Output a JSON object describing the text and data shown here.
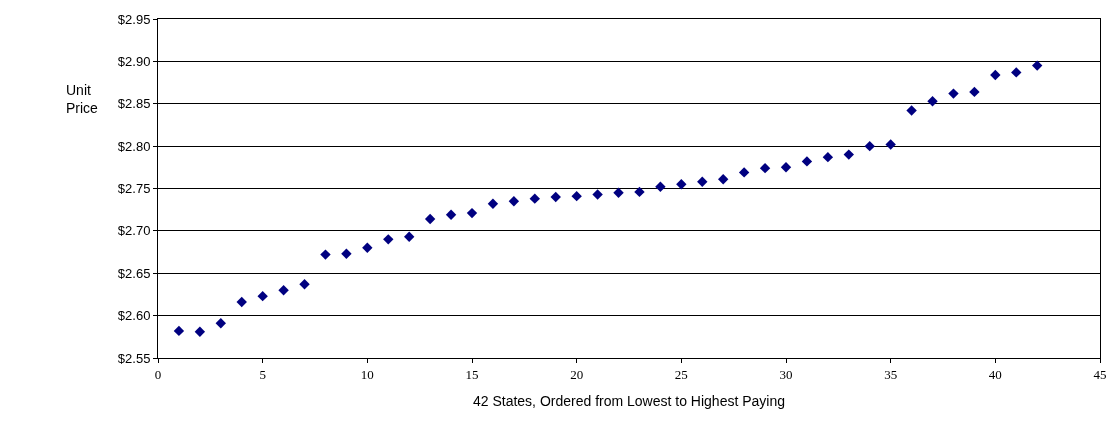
{
  "chart_data": {
    "type": "scatter",
    "xlabel": "42 States, Ordered from Lowest to Highest Paying",
    "ylabel": "Unit\nPrice",
    "x": [
      1,
      2,
      3,
      4,
      5,
      6,
      7,
      8,
      9,
      10,
      11,
      12,
      13,
      14,
      15,
      16,
      17,
      18,
      19,
      20,
      21,
      22,
      23,
      24,
      25,
      26,
      27,
      28,
      29,
      30,
      31,
      32,
      33,
      34,
      35,
      36,
      37,
      38,
      39,
      40,
      41,
      42
    ],
    "series": [
      {
        "color": "#000080",
        "values": [
          2.582,
          2.581,
          2.591,
          2.616,
          2.623,
          2.63,
          2.637,
          2.672,
          2.673,
          2.68,
          2.69,
          2.693,
          2.714,
          2.719,
          2.721,
          2.732,
          2.735,
          2.738,
          2.74,
          2.741,
          2.743,
          2.745,
          2.746,
          2.752,
          2.755,
          2.758,
          2.761,
          2.769,
          2.774,
          2.775,
          2.782,
          2.787,
          2.79,
          2.8,
          2.802,
          2.842,
          2.853,
          2.862,
          2.864,
          2.884,
          2.887,
          2.895
        ]
      }
    ],
    "xlim": [
      0,
      45
    ],
    "xticks": [
      0,
      5,
      10,
      15,
      20,
      25,
      30,
      35,
      40,
      45
    ],
    "ylim": [
      2.55,
      2.95
    ],
    "yticks": [
      {
        "value": 2.55,
        "label": "$2.55"
      },
      {
        "value": 2.6,
        "label": "$2.60"
      },
      {
        "value": 2.65,
        "label": "$2.65"
      },
      {
        "value": 2.7,
        "label": "$2.70"
      },
      {
        "value": 2.75,
        "label": "$2.75"
      },
      {
        "value": 2.8,
        "label": "$2.80"
      },
      {
        "value": 2.85,
        "label": "$2.85"
      },
      {
        "value": 2.9,
        "label": "$2.90"
      },
      {
        "value": 2.95,
        "label": "$2.95"
      }
    ],
    "grid": "y",
    "marker": "diamond"
  }
}
